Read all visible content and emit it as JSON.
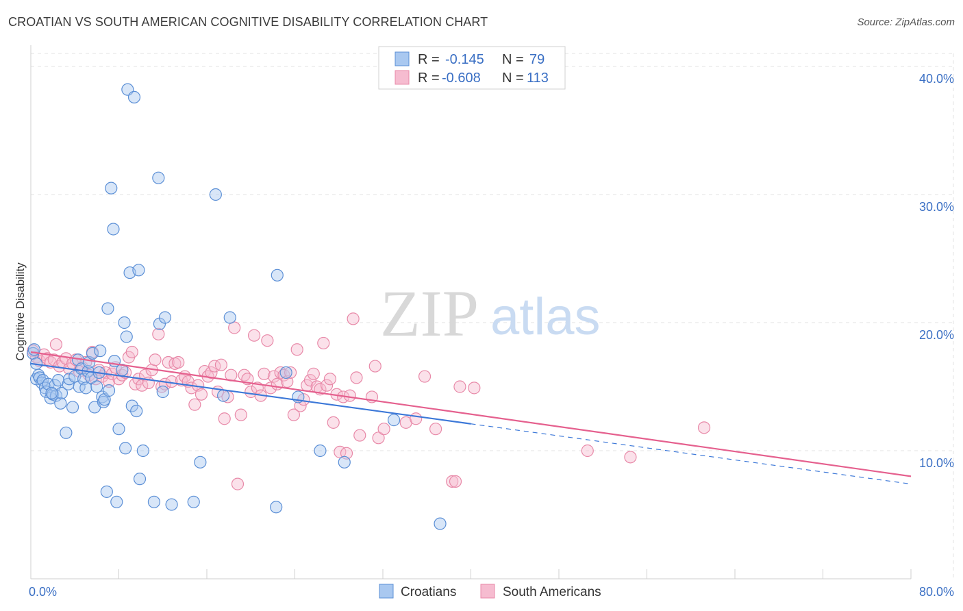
{
  "title": "CROATIAN VS SOUTH AMERICAN COGNITIVE DISABILITY CORRELATION CHART",
  "source": "Source: ZipAtlas.com",
  "watermark": {
    "zip": "ZIP",
    "atlas": "atlas"
  },
  "colors": {
    "croatians_fill": "#a9c8f0",
    "croatians_stroke": "#5b8fd6",
    "croatians_line": "#3c78d8",
    "south_fill": "#f6bcd0",
    "south_stroke": "#e889a8",
    "south_line": "#e5608e",
    "axis_label": "#3a6fc4",
    "grid": "#e3e3e3"
  },
  "legend": {
    "rows": [
      {
        "r_label": "R =",
        "r_value": "-0.145",
        "n_label": "N =",
        "n_value": "79"
      },
      {
        "r_label": "R =",
        "r_value": "-0.608",
        "n_label": "N =",
        "n_value": "113"
      }
    ]
  },
  "bottom_legend": [
    "Croatians",
    "South Americans"
  ],
  "chart_data": {
    "type": "scatter",
    "xlabel": "",
    "ylabel": "Cognitive Disability",
    "xlim": [
      0,
      80
    ],
    "ylim": [
      0,
      40
    ],
    "x_tick_labels": [
      "0.0%",
      "80.0%"
    ],
    "y_tick_labels": [
      "10.0%",
      "20.0%",
      "30.0%",
      "40.0%"
    ],
    "y_ticks": [
      10,
      20,
      30,
      40
    ],
    "grid": true,
    "legend_position": "top-center",
    "series": [
      {
        "name": "Croatians",
        "r": -0.145,
        "n": 79,
        "trend": {
          "x0": 0,
          "y0": 16.8,
          "x1": 40,
          "y1": 12.1,
          "dashed_to_x": 80,
          "dashed_to_y": 7.4
        },
        "points": [
          [
            0.2,
            17.6
          ],
          [
            0.5,
            16.8
          ],
          [
            0.5,
            15.6
          ],
          [
            0.7,
            15.9
          ],
          [
            0.8,
            15.7
          ],
          [
            1.0,
            15.3
          ],
          [
            1.1,
            15.5
          ],
          [
            1.3,
            14.9
          ],
          [
            1.4,
            14.6
          ],
          [
            1.6,
            15.2
          ],
          [
            1.8,
            14.1
          ],
          [
            2.0,
            14.4
          ],
          [
            2.2,
            15.1
          ],
          [
            2.3,
            14.3
          ],
          [
            2.5,
            15.5
          ],
          [
            2.7,
            13.7
          ],
          [
            2.8,
            14.5
          ],
          [
            3.2,
            11.4
          ],
          [
            3.4,
            15.2
          ],
          [
            3.5,
            15.6
          ],
          [
            3.8,
            13.4
          ],
          [
            4.0,
            15.8
          ],
          [
            4.3,
            17.1
          ],
          [
            4.4,
            15.0
          ],
          [
            4.6,
            16.4
          ],
          [
            4.8,
            15.6
          ],
          [
            5.0,
            14.9
          ],
          [
            5.2,
            16.2
          ],
          [
            5.3,
            16.9
          ],
          [
            5.5,
            15.7
          ],
          [
            5.6,
            17.6
          ],
          [
            5.8,
            13.4
          ],
          [
            6.0,
            15.0
          ],
          [
            6.2,
            16.1
          ],
          [
            6.3,
            17.8
          ],
          [
            6.5,
            14.2
          ],
          [
            6.6,
            13.8
          ],
          [
            6.7,
            14.0
          ],
          [
            6.9,
            6.8
          ],
          [
            7.0,
            21.1
          ],
          [
            7.1,
            14.7
          ],
          [
            7.3,
            30.5
          ],
          [
            7.5,
            27.3
          ],
          [
            7.6,
            17.0
          ],
          [
            7.8,
            6.0
          ],
          [
            8.0,
            11.7
          ],
          [
            8.3,
            16.3
          ],
          [
            8.5,
            20.0
          ],
          [
            8.6,
            10.2
          ],
          [
            8.7,
            18.9
          ],
          [
            8.8,
            38.2
          ],
          [
            9.0,
            23.9
          ],
          [
            9.2,
            13.5
          ],
          [
            9.4,
            37.6
          ],
          [
            9.6,
            13.1
          ],
          [
            9.8,
            24.1
          ],
          [
            9.9,
            7.8
          ],
          [
            10.2,
            10.0
          ],
          [
            11.2,
            6.0
          ],
          [
            11.6,
            31.3
          ],
          [
            11.7,
            19.9
          ],
          [
            12.0,
            14.6
          ],
          [
            12.2,
            20.4
          ],
          [
            12.8,
            5.8
          ],
          [
            14.8,
            6.0
          ],
          [
            15.4,
            9.1
          ],
          [
            16.8,
            30.0
          ],
          [
            17.5,
            14.3
          ],
          [
            18.1,
            20.4
          ],
          [
            22.4,
            23.7
          ],
          [
            22.3,
            5.6
          ],
          [
            23.2,
            16.1
          ],
          [
            24.3,
            14.2
          ],
          [
            26.3,
            10.0
          ],
          [
            28.5,
            9.1
          ],
          [
            33.0,
            12.4
          ],
          [
            37.2,
            4.3
          ],
          [
            0.3,
            17.9
          ],
          [
            1.9,
            14.5
          ]
        ]
      },
      {
        "name": "South Americans",
        "r": -0.608,
        "n": 113,
        "trend": {
          "x0": 0,
          "y0": 17.7,
          "x1": 80,
          "y1": 8.0
        },
        "points": [
          [
            0.2,
            17.8
          ],
          [
            0.5,
            17.3
          ],
          [
            0.8,
            17.0
          ],
          [
            1.2,
            17.5
          ],
          [
            1.5,
            17.2
          ],
          [
            1.8,
            16.9
          ],
          [
            2.1,
            17.1
          ],
          [
            2.3,
            18.3
          ],
          [
            2.6,
            16.6
          ],
          [
            2.9,
            16.9
          ],
          [
            3.2,
            17.2
          ],
          [
            3.5,
            16.4
          ],
          [
            3.8,
            16.8
          ],
          [
            4.1,
            17.1
          ],
          [
            4.4,
            16.2
          ],
          [
            4.7,
            16.5
          ],
          [
            5.0,
            16.9
          ],
          [
            5.3,
            15.9
          ],
          [
            5.6,
            17.7
          ],
          [
            5.9,
            15.6
          ],
          [
            6.2,
            16.3
          ],
          [
            6.5,
            15.8
          ],
          [
            6.8,
            16.1
          ],
          [
            7.1,
            15.4
          ],
          [
            7.4,
            16.0
          ],
          [
            7.7,
            16.5
          ],
          [
            8.0,
            15.6
          ],
          [
            8.3,
            15.9
          ],
          [
            8.6,
            16.1
          ],
          [
            8.9,
            17.3
          ],
          [
            9.2,
            17.7
          ],
          [
            9.5,
            15.2
          ],
          [
            9.8,
            15.6
          ],
          [
            10.1,
            15.1
          ],
          [
            10.4,
            15.9
          ],
          [
            10.7,
            15.3
          ],
          [
            11.0,
            16.3
          ],
          [
            11.3,
            17.1
          ],
          [
            11.6,
            19.1
          ],
          [
            11.9,
            15.0
          ],
          [
            12.2,
            15.2
          ],
          [
            12.5,
            16.9
          ],
          [
            12.8,
            15.4
          ],
          [
            13.1,
            16.8
          ],
          [
            13.4,
            16.9
          ],
          [
            13.7,
            15.5
          ],
          [
            14.0,
            15.8
          ],
          [
            14.3,
            15.4
          ],
          [
            14.6,
            14.9
          ],
          [
            14.9,
            13.6
          ],
          [
            15.2,
            15.1
          ],
          [
            15.5,
            14.4
          ],
          [
            15.8,
            16.2
          ],
          [
            16.1,
            15.8
          ],
          [
            16.4,
            16.1
          ],
          [
            16.7,
            16.6
          ],
          [
            17.0,
            14.6
          ],
          [
            17.3,
            16.7
          ],
          [
            17.6,
            12.5
          ],
          [
            17.9,
            14.2
          ],
          [
            18.2,
            15.9
          ],
          [
            18.5,
            19.6
          ],
          [
            18.8,
            7.4
          ],
          [
            19.1,
            12.8
          ],
          [
            19.4,
            15.9
          ],
          [
            19.7,
            15.6
          ],
          [
            20.0,
            14.6
          ],
          [
            20.3,
            19.0
          ],
          [
            20.6,
            14.9
          ],
          [
            20.9,
            14.3
          ],
          [
            21.2,
            16.0
          ],
          [
            21.5,
            18.6
          ],
          [
            21.8,
            14.9
          ],
          [
            22.1,
            15.8
          ],
          [
            22.4,
            15.2
          ],
          [
            22.7,
            16.1
          ],
          [
            23.0,
            15.9
          ],
          [
            23.3,
            15.4
          ],
          [
            23.6,
            16.1
          ],
          [
            23.9,
            12.8
          ],
          [
            24.2,
            17.9
          ],
          [
            24.5,
            13.5
          ],
          [
            24.8,
            14.0
          ],
          [
            25.1,
            15.1
          ],
          [
            25.4,
            15.5
          ],
          [
            25.7,
            16.0
          ],
          [
            26.0,
            15.0
          ],
          [
            26.3,
            14.8
          ],
          [
            26.6,
            18.4
          ],
          [
            26.9,
            15.1
          ],
          [
            27.2,
            15.6
          ],
          [
            27.5,
            12.2
          ],
          [
            27.8,
            14.4
          ],
          [
            28.1,
            9.9
          ],
          [
            28.4,
            14.2
          ],
          [
            28.7,
            9.8
          ],
          [
            29.0,
            14.3
          ],
          [
            29.3,
            20.3
          ],
          [
            29.6,
            15.7
          ],
          [
            29.9,
            11.2
          ],
          [
            31.0,
            14.2
          ],
          [
            31.3,
            16.6
          ],
          [
            31.6,
            11.0
          ],
          [
            32.1,
            11.7
          ],
          [
            34.1,
            12.2
          ],
          [
            35.0,
            12.5
          ],
          [
            35.8,
            15.8
          ],
          [
            36.8,
            11.7
          ],
          [
            38.3,
            7.6
          ],
          [
            38.6,
            7.6
          ],
          [
            39.0,
            15.0
          ],
          [
            40.3,
            14.9
          ],
          [
            50.6,
            10.0
          ],
          [
            54.5,
            9.5
          ],
          [
            61.2,
            11.8
          ]
        ]
      }
    ]
  }
}
